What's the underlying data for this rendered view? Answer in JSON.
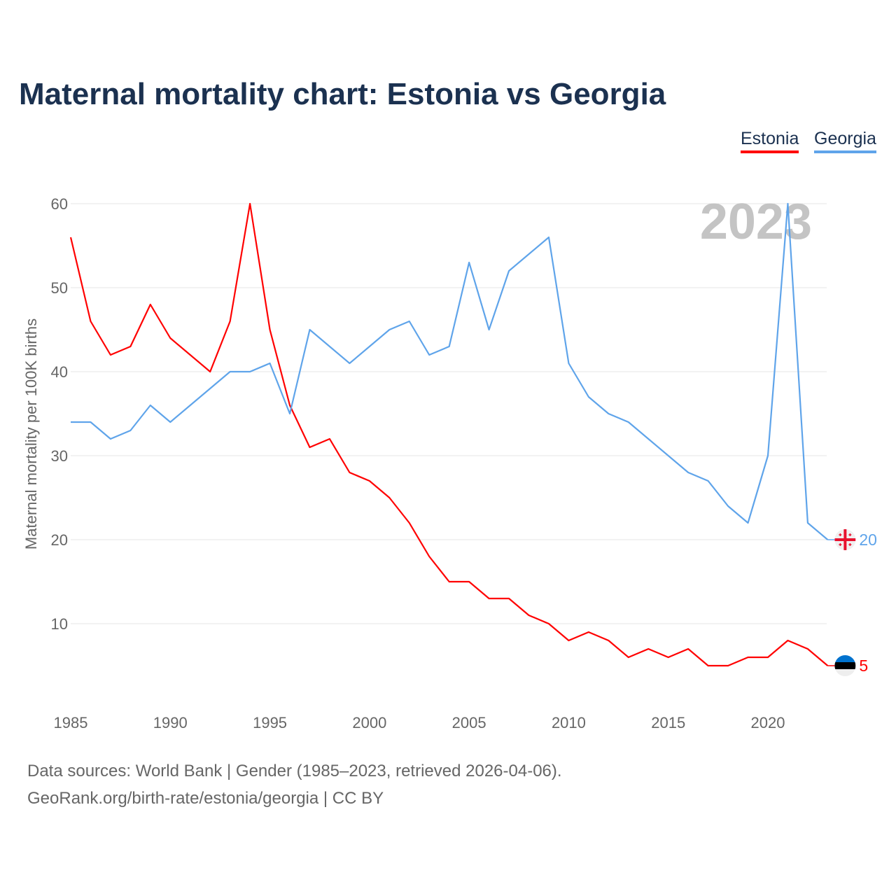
{
  "chart_data": {
    "type": "line",
    "title": "Maternal mortality chart: Estonia vs Georgia",
    "ylabel": "Maternal mortality per 100K births",
    "xlabel": "",
    "year_watermark": "2023",
    "ylim": [
      0,
      60
    ],
    "xlim": [
      1985,
      2023
    ],
    "yticks": [
      10,
      20,
      30,
      40,
      50,
      60
    ],
    "xticks": [
      1985,
      1990,
      1995,
      2000,
      2005,
      2010,
      2015,
      2020
    ],
    "grid": true,
    "legend_position": "top-right",
    "x": [
      1985,
      1986,
      1987,
      1988,
      1989,
      1990,
      1991,
      1992,
      1993,
      1994,
      1995,
      1996,
      1997,
      1998,
      1999,
      2000,
      2001,
      2002,
      2003,
      2004,
      2005,
      2006,
      2007,
      2008,
      2009,
      2010,
      2011,
      2012,
      2013,
      2014,
      2015,
      2016,
      2017,
      2018,
      2019,
      2020,
      2021,
      2022,
      2023
    ],
    "series": [
      {
        "name": "Estonia",
        "color": "#ff0000",
        "end_label": "5",
        "values": [
          56,
          46,
          42,
          43,
          48,
          44,
          42,
          40,
          46,
          60,
          45,
          36,
          31,
          32,
          28,
          27,
          25,
          22,
          18,
          15,
          15,
          13,
          13,
          11,
          10,
          8,
          9,
          8,
          6,
          7,
          6,
          7,
          5,
          5,
          6,
          6,
          8,
          7,
          5
        ]
      },
      {
        "name": "Georgia",
        "color": "#5fa4ea",
        "end_label": "20",
        "values": [
          34,
          34,
          32,
          33,
          36,
          34,
          36,
          38,
          40,
          40,
          41,
          35,
          45,
          43,
          41,
          43,
          45,
          46,
          42,
          43,
          53,
          45,
          52,
          54,
          56,
          41,
          37,
          35,
          34,
          32,
          30,
          28,
          27,
          24,
          22,
          30,
          60,
          22,
          20
        ]
      }
    ]
  },
  "footer": {
    "line1": "Data sources: World Bank | Gender (1985–2023, retrieved 2026-04-06).",
    "line2": "GeoRank.org/birth-rate/estonia/georgia | CC BY"
  }
}
